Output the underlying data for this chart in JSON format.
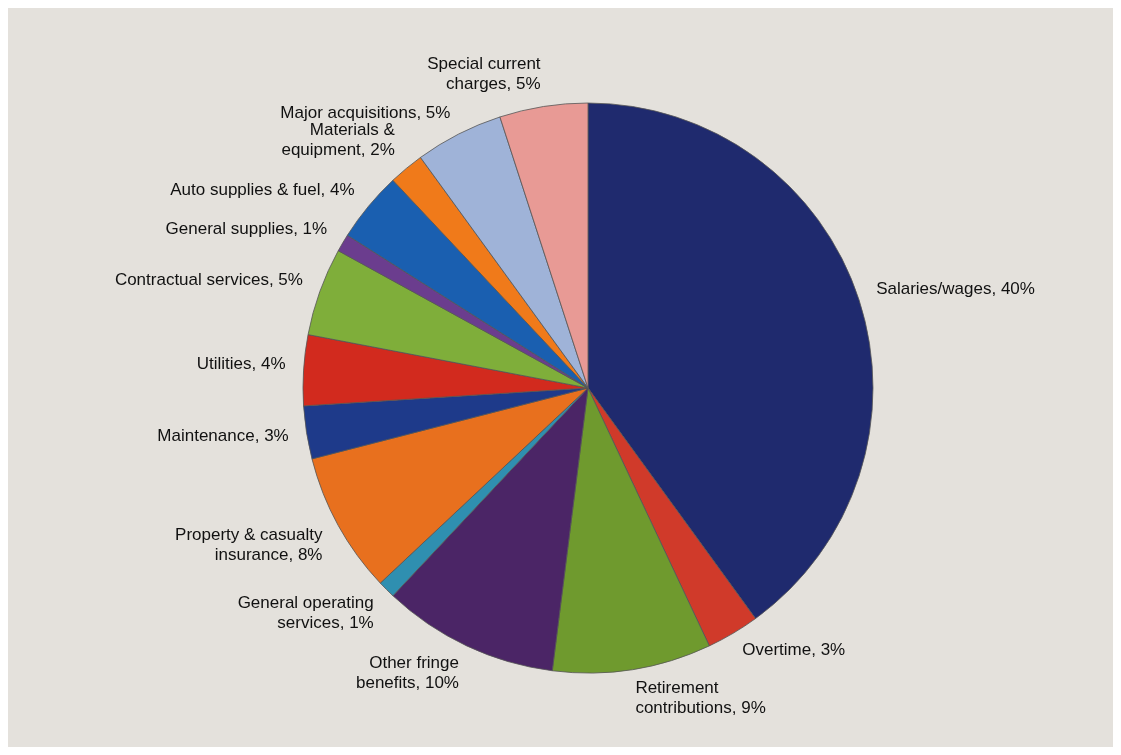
{
  "chart_data": {
    "type": "pie",
    "categories": [
      "Salaries/wages",
      "Overtime",
      "Retirement contributions",
      "Other fringe benefits",
      "General operating services",
      "Property & casualty insurance",
      "Maintenance",
      "Utilities",
      "Contractual services",
      "General supplies",
      "Auto supplies & fuel",
      "Materials & equipment",
      "Major acquisitions",
      "Special current charges"
    ],
    "values": [
      40,
      3,
      9,
      10,
      1,
      8,
      3,
      4,
      5,
      1,
      4,
      2,
      5,
      5
    ],
    "value_labels": [
      "40%",
      "3%",
      "9%",
      "10%",
      "1%",
      "8%",
      "3%",
      "4%",
      "5%",
      "1%",
      "4%",
      "2%",
      "5%",
      "5%"
    ],
    "colors": [
      "#1f2a6e",
      "#d03a2a",
      "#6f9a2e",
      "#4b2566",
      "#2f8fb0",
      "#e8701e",
      "#1e3a8a",
      "#d22a1e",
      "#7fae3a",
      "#6b3d8e",
      "#1a5fb0",
      "#f07a1a",
      "#9fb3d8",
      "#e89a95"
    ],
    "legend": false
  }
}
